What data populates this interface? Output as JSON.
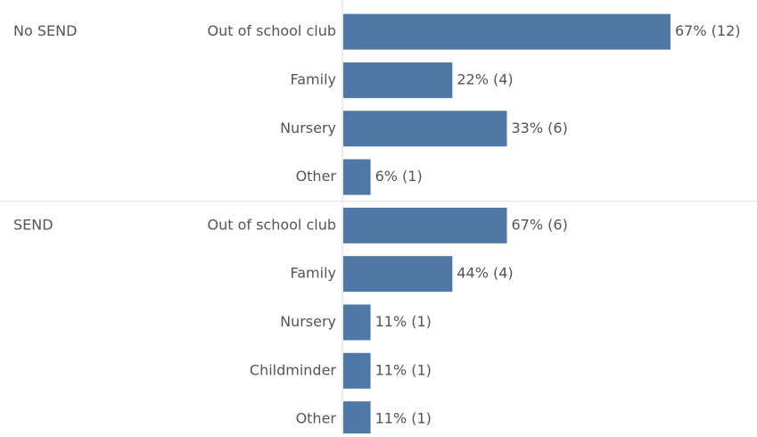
{
  "chart_data": {
    "type": "bar",
    "color": "#4e79a7",
    "groups": [
      {
        "name": "No SEND",
        "categories": [
          "Out of school club",
          "Family",
          "Nursery",
          "Other"
        ],
        "values": [
          12,
          4,
          6,
          1
        ],
        "value_labels": [
          "67% (12)",
          "22% (4)",
          "33% (6)",
          "6% (1)"
        ]
      },
      {
        "name": "SEND",
        "categories": [
          "Out of school club",
          "Family",
          "Nursery",
          "Childminder",
          "Other"
        ],
        "values": [
          6,
          4,
          1,
          1,
          1
        ],
        "value_labels": [
          "67% (6)",
          "44% (4)",
          "11% (1)",
          "11% (1)",
          "11% (1)"
        ]
      }
    ]
  }
}
